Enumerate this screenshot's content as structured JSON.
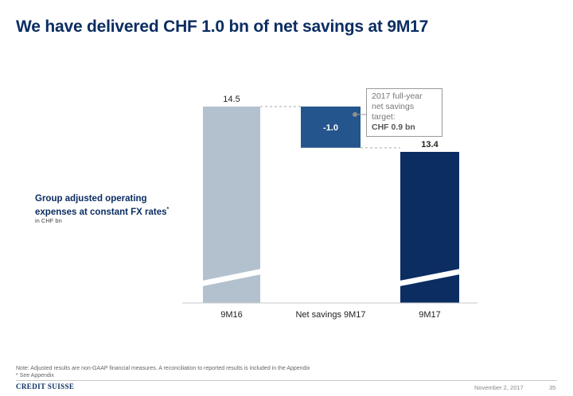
{
  "title": "We have delivered CHF 1.0 bn of net savings at 9M17",
  "y_title": "Group adjusted operating expenses at constant FX rates",
  "y_title_marker": "*",
  "y_unit": "in CHF bn",
  "callout": {
    "line1": "2017 full-year",
    "line2": "net savings target:",
    "value": "CHF 0.9 bn"
  },
  "footnote": {
    "line1": "Note: Adjusted results are non-GAAP financial measures. A reconciliation to reported results is included in the Appendix",
    "line2": "* See Appendix"
  },
  "footer": {
    "logo": "CREDIT SUISSE",
    "date": "November 2, 2017",
    "page": "35"
  },
  "chart_data": {
    "type": "bar",
    "subtype": "waterfall",
    "categories": [
      "9M16",
      "Net savings 9M17",
      "9M17"
    ],
    "values": [
      14.5,
      -1.0,
      13.4
    ],
    "data_labels": [
      "14.5",
      "-1.0",
      "13.4"
    ],
    "axis_break": true,
    "ylim": [
      0,
      14.5
    ],
    "colors": [
      "#b3c1cf",
      "#24558c",
      "#0b2d62"
    ]
  }
}
